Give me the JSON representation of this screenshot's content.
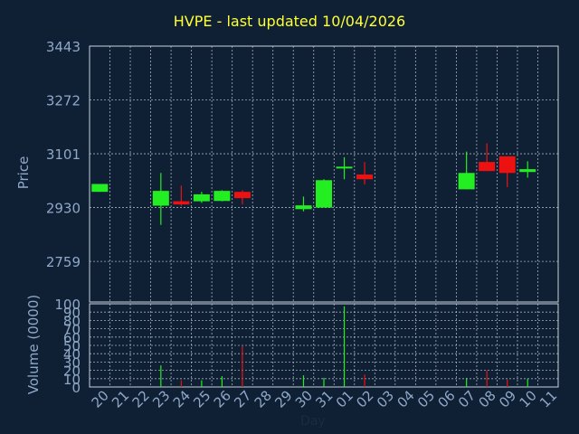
{
  "title": "HVPE - last updated 10/04/2026",
  "price_axis_label": "Price",
  "volume_axis_label": "Volume (0000)",
  "x_axis_label": "Day",
  "colors": {
    "background": "#0f2035",
    "title": "#ffff33",
    "axis_text": "#8fa8c8",
    "grid": "#c8d2dc",
    "up": "#22ee22",
    "down": "#ee1111"
  },
  "chart_data": [
    {
      "type": "candlestick",
      "title": "HVPE - last updated 10/04/2026",
      "ylabel": "Price",
      "ylim": [
        2630,
        3443
      ],
      "y_ticks": [
        3443,
        3272,
        3101,
        2930,
        2759
      ],
      "grid": true,
      "candles": [
        {
          "day": "20",
          "open": 2980,
          "close": 3005,
          "high": 3005,
          "low": 2980,
          "direction": "up"
        },
        {
          "day": "23",
          "open": 2936,
          "close": 2983,
          "high": 3040,
          "low": 2875,
          "direction": "up"
        },
        {
          "day": "24",
          "open": 2950,
          "close": 2940,
          "high": 3000,
          "low": 2935,
          "direction": "down"
        },
        {
          "day": "25",
          "open": 2950,
          "close": 2972,
          "high": 2980,
          "low": 2945,
          "direction": "up"
        },
        {
          "day": "26",
          "open": 2951,
          "close": 2983,
          "high": 2985,
          "low": 2950,
          "direction": "up"
        },
        {
          "day": "27",
          "open": 2980,
          "close": 2960,
          "high": 2985,
          "low": 2940,
          "direction": "down"
        },
        {
          "day": "30",
          "open": 2925,
          "close": 2937,
          "high": 2965,
          "low": 2918,
          "direction": "up"
        },
        {
          "day": "31",
          "open": 2930,
          "close": 3017,
          "high": 3020,
          "low": 2930,
          "direction": "up"
        },
        {
          "day": "01",
          "open": 3057,
          "close": 3060,
          "high": 3090,
          "low": 3020,
          "direction": "up"
        },
        {
          "day": "02",
          "open": 3035,
          "close": 3020,
          "high": 3075,
          "low": 3003,
          "direction": "down"
        },
        {
          "day": "07",
          "open": 2988,
          "close": 3040,
          "high": 3108,
          "low": 2988,
          "direction": "up"
        },
        {
          "day": "08",
          "open": 3075,
          "close": 3046,
          "high": 3134,
          "low": 3046,
          "direction": "down"
        },
        {
          "day": "09",
          "open": 3093,
          "close": 3040,
          "high": 3093,
          "low": 2995,
          "direction": "down"
        },
        {
          "day": "10",
          "open": 3043,
          "close": 3052,
          "high": 3077,
          "low": 3025,
          "direction": "up"
        }
      ]
    },
    {
      "type": "bar",
      "ylabel": "Volume (0000)",
      "xlabel": "Day",
      "ylim": [
        0,
        100
      ],
      "y_ticks": [
        100,
        90,
        80,
        70,
        60,
        50,
        40,
        30,
        20,
        10,
        0
      ],
      "grid": true,
      "categories": [
        "20",
        "21",
        "22",
        "23",
        "24",
        "25",
        "26",
        "27",
        "28",
        "29",
        "30",
        "31",
        "01",
        "02",
        "03",
        "04",
        "05",
        "06",
        "07",
        "08",
        "09",
        "10",
        "11"
      ],
      "values": [
        0,
        0,
        0,
        26,
        8,
        8,
        13,
        49,
        0,
        0,
        14,
        11,
        97,
        15,
        0,
        0,
        0,
        0,
        11,
        20,
        9,
        10,
        0
      ],
      "bar_direction": [
        "up",
        "up",
        "up",
        "up",
        "down",
        "up",
        "up",
        "down",
        "up",
        "up",
        "up",
        "up",
        "up",
        "down",
        "up",
        "up",
        "up",
        "up",
        "up",
        "down",
        "down",
        "up",
        "up"
      ]
    }
  ]
}
